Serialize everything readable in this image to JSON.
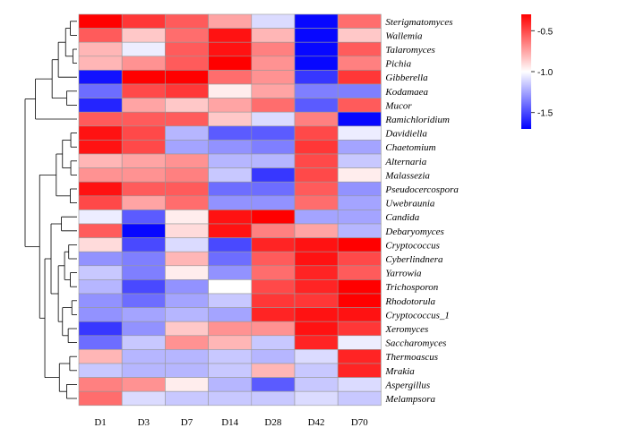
{
  "chart_data": {
    "type": "heatmap",
    "title": "",
    "xlabel": "",
    "ylabel": "",
    "columns": [
      "D1",
      "D3",
      "D7",
      "D14",
      "D28",
      "D42",
      "D70"
    ],
    "rows": [
      "Sterigmatomyces",
      "Wallemia",
      "Talaromyces",
      "Pichia",
      "Gibberella",
      "Kodamaea",
      "Mucor",
      "Ramichloridium",
      "Davidiella",
      "Chaetomium",
      "Alternaria",
      "Malassezia",
      "Pseudocercospora",
      "Uwebraunia",
      "Candida",
      "Debaryomyces",
      "Cryptococcus",
      "Cyberlindnera",
      "Yarrowia",
      "Trichosporon",
      "Rhodotorula",
      "Cryptococcus_1",
      "Xeromyces",
      "Saccharomyces",
      "Thermoascus",
      "Mrakia",
      "Aspergillus",
      "Melampsora"
    ],
    "values": [
      [
        -0.3,
        -0.45,
        -0.55,
        -0.75,
        -1.1,
        -1.68,
        -0.6
      ],
      [
        -0.55,
        -0.85,
        -0.6,
        -0.35,
        -0.8,
        -1.68,
        -0.85
      ],
      [
        -0.8,
        -1.05,
        -0.55,
        -0.35,
        -0.65,
        -1.68,
        -0.55
      ],
      [
        -0.8,
        -0.7,
        -0.55,
        -0.3,
        -0.7,
        -1.68,
        -0.65
      ],
      [
        -1.65,
        -0.2,
        -0.2,
        -0.6,
        -0.7,
        -1.55,
        -0.45
      ],
      [
        -1.4,
        -0.5,
        -0.45,
        -0.95,
        -0.75,
        -1.35,
        -1.35
      ],
      [
        -1.6,
        -0.75,
        -0.85,
        -0.75,
        -0.6,
        -1.45,
        -0.55
      ],
      [
        -0.55,
        -0.55,
        -0.55,
        -0.85,
        -1.1,
        -0.65,
        -1.68
      ],
      [
        -0.35,
        -0.5,
        -1.2,
        -1.45,
        -1.45,
        -0.5,
        -1.05
      ],
      [
        -0.35,
        -0.5,
        -1.25,
        -1.3,
        -1.35,
        -0.45,
        -1.25
      ],
      [
        -0.8,
        -0.75,
        -0.7,
        -1.2,
        -1.2,
        -0.5,
        -1.15
      ],
      [
        -0.7,
        -0.7,
        -0.65,
        -1.15,
        -1.55,
        -0.5,
        -0.95
      ],
      [
        -0.35,
        -0.55,
        -0.55,
        -1.4,
        -1.4,
        -0.55,
        -1.3
      ],
      [
        -0.5,
        -0.75,
        -0.6,
        -1.3,
        -1.3,
        -0.6,
        -1.25
      ],
      [
        -1.05,
        -1.45,
        -0.95,
        -0.35,
        -0.1,
        -1.25,
        -1.25
      ],
      [
        -0.55,
        -1.68,
        -0.9,
        -0.35,
        -0.65,
        -0.75,
        -1.2
      ],
      [
        -0.9,
        -1.5,
        -1.1,
        -1.5,
        -0.4,
        -0.35,
        -0.25
      ],
      [
        -1.3,
        -1.35,
        -0.8,
        -1.4,
        -0.55,
        -0.35,
        -0.5
      ],
      [
        -1.15,
        -1.35,
        -0.95,
        -1.3,
        -0.6,
        -0.4,
        -0.55
      ],
      [
        -1.2,
        -1.5,
        -1.3,
        -1.0,
        -0.5,
        -0.4,
        -0.3
      ],
      [
        -1.3,
        -1.4,
        -1.25,
        -1.15,
        -0.45,
        -0.45,
        -0.2
      ],
      [
        -1.3,
        -1.25,
        -1.2,
        -1.25,
        -0.4,
        -0.35,
        -0.35
      ],
      [
        -1.55,
        -1.3,
        -0.85,
        -0.7,
        -0.7,
        -0.35,
        -0.45
      ],
      [
        -1.4,
        -1.15,
        -0.7,
        -0.8,
        -1.15,
        -0.4,
        -1.05
      ],
      [
        -0.8,
        -1.2,
        -1.2,
        -1.15,
        -1.2,
        -1.1,
        -0.4
      ],
      [
        -1.15,
        -1.2,
        -1.2,
        -1.15,
        -0.8,
        -1.15,
        -0.4
      ],
      [
        -0.65,
        -0.7,
        -0.95,
        -1.2,
        -1.45,
        -1.15,
        -1.1
      ],
      [
        -0.6,
        -1.1,
        -1.15,
        -1.15,
        -1.15,
        -1.1,
        -1.15
      ]
    ],
    "color_scale": {
      "min_color": "#0000ff",
      "mid_color": "#ffffff",
      "max_color": "#ff0000",
      "domain": [
        -1.7,
        -1.0,
        -0.3
      ],
      "ticks": [
        "-0.5",
        "-1.0",
        "-1.5"
      ],
      "tick_values": [
        -0.5,
        -1.0,
        -1.5
      ]
    },
    "dendrogram": "rows"
  }
}
